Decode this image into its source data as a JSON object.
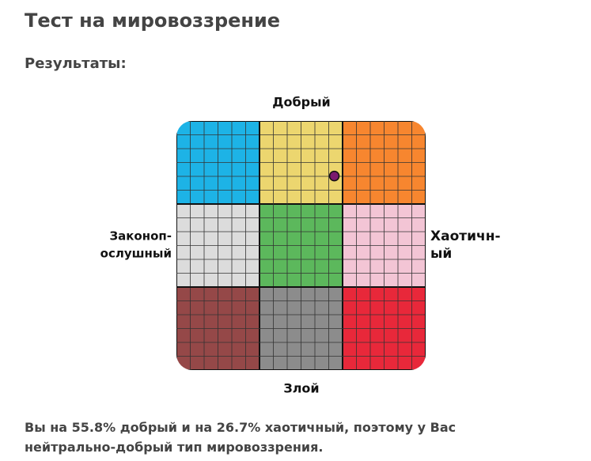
{
  "header": {
    "title": "Тест на мировоззрение",
    "subtitle": "Результаты:"
  },
  "grid": {
    "top": "Добрый",
    "bottom": "Злой",
    "left": [
      "Законоп-",
      "ослушный"
    ],
    "right": [
      "Хаотичн-",
      "ый"
    ]
  },
  "result": {
    "before": "Вы на ",
    "good": {
      "value": 55.8,
      "label": "55.8%"
    },
    "middle": " добрый и на ",
    "chaotic": {
      "value": 26.7,
      "label": "26.7%"
    },
    "after": " хаотичный, поэтому у Вас нейтрально-добрый тип мировоззрения."
  }
}
